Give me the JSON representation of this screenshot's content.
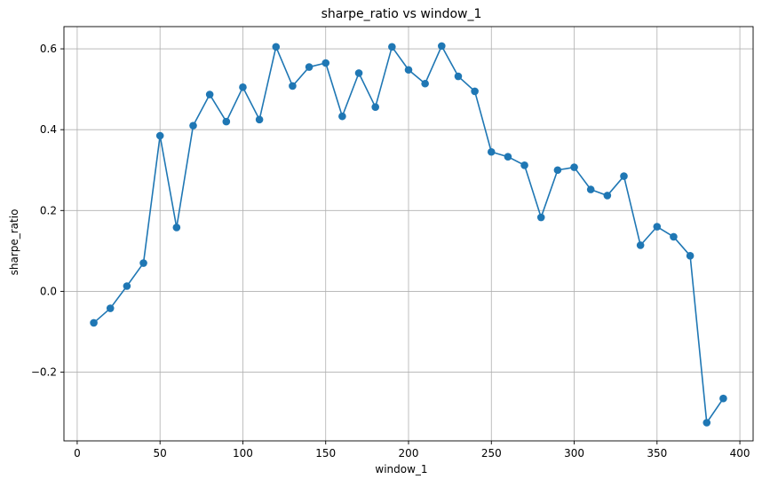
{
  "chart_data": {
    "type": "line",
    "title": "sharpe_ratio vs window_1",
    "xlabel": "window_1",
    "ylabel": "sharpe_ratio",
    "xlim": [
      -8,
      408
    ],
    "ylim": [
      -0.37,
      0.655
    ],
    "xticks": [
      0,
      50,
      100,
      150,
      200,
      250,
      300,
      350,
      400
    ],
    "yticks": [
      -0.2,
      0.0,
      0.2,
      0.4,
      0.6
    ],
    "xtick_labels": [
      "0",
      "50",
      "100",
      "150",
      "200",
      "250",
      "300",
      "350",
      "400"
    ],
    "ytick_labels": [
      "−0.2",
      "0.0",
      "0.2",
      "0.4",
      "0.6"
    ],
    "grid": true,
    "marker": "circle",
    "color": "#1f77b4",
    "x": [
      10,
      20,
      30,
      40,
      50,
      60,
      70,
      80,
      90,
      100,
      110,
      120,
      130,
      140,
      150,
      160,
      170,
      180,
      190,
      200,
      210,
      220,
      230,
      240,
      250,
      260,
      270,
      280,
      290,
      300,
      310,
      320,
      330,
      340,
      350,
      360,
      370,
      380,
      390
    ],
    "y": [
      -0.078,
      -0.042,
      0.013,
      0.07,
      0.385,
      0.158,
      0.41,
      0.487,
      0.42,
      0.505,
      0.425,
      0.605,
      0.508,
      0.555,
      0.565,
      0.433,
      0.54,
      0.456,
      0.605,
      0.548,
      0.514,
      0.607,
      0.532,
      0.495,
      0.345,
      0.333,
      0.312,
      0.183,
      0.3,
      0.307,
      0.252,
      0.237,
      0.285,
      0.114,
      0.16,
      0.135,
      0.088,
      -0.325,
      -0.265
    ]
  }
}
